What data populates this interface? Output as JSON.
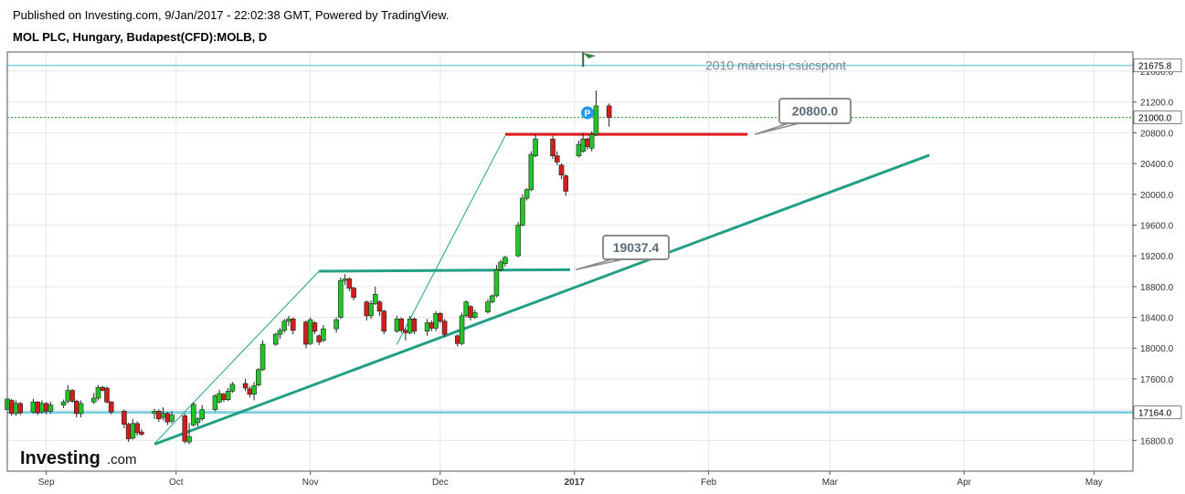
{
  "header": {
    "published": "Published on Investing.com, 9/Jan/2017 - 22:02:38 GMT, Powered by TradingView.",
    "symbol": "MOL PLC, Hungary, Budapest(CFD):MOLB, D"
  },
  "logo": {
    "main": "Investing",
    "suffix": ".com"
  },
  "colors": {
    "up": "#22c42a",
    "down": "#d11d1d",
    "trend": "#22a085",
    "red_level": "#e01b1b",
    "cyan_level": "#7fd3e0",
    "current": "#1a9a1a",
    "callout_border": "#8a8a8a",
    "callout_text": "#5a6b7a"
  },
  "chart_data": {
    "type": "candlestick",
    "title": "MOL PLC, Hungary, Budapest(CFD):MOLB, D",
    "ylim": [
      16400,
      21850
    ],
    "yticks": [
      16800,
      17200,
      17600,
      18000,
      18400,
      18800,
      19200,
      19600,
      20000,
      20400,
      20800,
      21200,
      21600
    ],
    "xlim": [
      "2016-08-23",
      "2017-05-10"
    ],
    "xticks": [
      {
        "date": "2016-09-01",
        "label": "Sep",
        "bold": false
      },
      {
        "date": "2016-10-01",
        "label": "Oct",
        "bold": false
      },
      {
        "date": "2016-11-01",
        "label": "Nov",
        "bold": false
      },
      {
        "date": "2016-12-01",
        "label": "Dec",
        "bold": false
      },
      {
        "date": "2017-01-01",
        "label": "2017",
        "bold": true
      },
      {
        "date": "2017-02-01",
        "label": "Feb",
        "bold": false
      },
      {
        "date": "2017-03-01",
        "label": "Mar",
        "bold": false
      },
      {
        "date": "2017-04-01",
        "label": "Apr",
        "bold": false
      },
      {
        "date": "2017-05-01",
        "label": "May",
        "bold": false
      }
    ],
    "grid": true,
    "current_price": 21000.0,
    "current_price_label": "21000.0",
    "price_tags": [
      {
        "value": 21675.8,
        "label": "21675.8"
      },
      {
        "value": 17164.0,
        "label": "17164.0"
      }
    ],
    "annotation_text": "2010 márciusi csúcspont",
    "callouts": [
      {
        "label": "20800.0",
        "value": 20800.0
      },
      {
        "label": "19037.4",
        "value": 19037.4
      }
    ],
    "lines": [
      {
        "kind": "resistance",
        "from": [
          "2016-12-16",
          20780
        ],
        "to": [
          "2017-02-10",
          20780
        ]
      },
      {
        "kind": "trend",
        "from": [
          "2016-09-26",
          16750
        ],
        "to": [
          "2017-03-24",
          20510
        ]
      },
      {
        "kind": "horizontal",
        "from": [
          "2016-11-03",
          19000
        ],
        "to": [
          "2016-12-31",
          19020
        ]
      },
      {
        "kind": "channel",
        "from": [
          "2016-09-26",
          16760
        ],
        "to": [
          "2016-11-03",
          19000
        ]
      },
      {
        "kind": "channel",
        "from": [
          "2016-11-21",
          18050
        ],
        "to": [
          "2016-12-16",
          20760
        ]
      }
    ],
    "pin_label": "P",
    "candles": [
      {
        "date": "2016-08-23",
        "o": 17200,
        "h": 17360,
        "l": 17120,
        "c": 17340
      },
      {
        "date": "2016-08-24",
        "o": 17320,
        "h": 17340,
        "l": 17120,
        "c": 17150
      },
      {
        "date": "2016-08-25",
        "o": 17150,
        "h": 17320,
        "l": 17120,
        "c": 17280
      },
      {
        "date": "2016-08-26",
        "o": 17280,
        "h": 17300,
        "l": 17130,
        "c": 17160
      },
      {
        "date": "2016-08-29",
        "o": 17170,
        "h": 17340,
        "l": 17150,
        "c": 17300
      },
      {
        "date": "2016-08-30",
        "o": 17300,
        "h": 17310,
        "l": 17130,
        "c": 17160
      },
      {
        "date": "2016-08-31",
        "o": 17170,
        "h": 17320,
        "l": 17150,
        "c": 17280
      },
      {
        "date": "2016-09-01",
        "o": 17280,
        "h": 17300,
        "l": 17140,
        "c": 17180
      },
      {
        "date": "2016-09-02",
        "o": 17180,
        "h": 17300,
        "l": 17150,
        "c": 17260
      },
      {
        "date": "2016-09-05",
        "o": 17260,
        "h": 17330,
        "l": 17220,
        "c": 17300
      },
      {
        "date": "2016-09-06",
        "o": 17310,
        "h": 17520,
        "l": 17280,
        "c": 17450
      },
      {
        "date": "2016-09-07",
        "o": 17450,
        "h": 17470,
        "l": 17290,
        "c": 17310
      },
      {
        "date": "2016-09-08",
        "o": 17310,
        "h": 17330,
        "l": 17100,
        "c": 17150
      },
      {
        "date": "2016-09-09",
        "o": 17150,
        "h": 17320,
        "l": 17100,
        "c": 17280
      },
      {
        "date": "2016-09-12",
        "o": 17300,
        "h": 17420,
        "l": 17270,
        "c": 17350
      },
      {
        "date": "2016-09-13",
        "o": 17350,
        "h": 17520,
        "l": 17320,
        "c": 17490
      },
      {
        "date": "2016-09-14",
        "o": 17490,
        "h": 17510,
        "l": 17440,
        "c": 17450
      },
      {
        "date": "2016-09-15",
        "o": 17480,
        "h": 17500,
        "l": 17280,
        "c": 17300
      },
      {
        "date": "2016-09-16",
        "o": 17300,
        "h": 17310,
        "l": 17140,
        "c": 17170
      },
      {
        "date": "2016-09-19",
        "o": 17180,
        "h": 17200,
        "l": 16960,
        "c": 17010
      },
      {
        "date": "2016-09-20",
        "o": 17010,
        "h": 17030,
        "l": 16780,
        "c": 16820
      },
      {
        "date": "2016-09-21",
        "o": 16830,
        "h": 17080,
        "l": 16810,
        "c": 17020
      },
      {
        "date": "2016-09-22",
        "o": 17020,
        "h": 17050,
        "l": 16860,
        "c": 16900
      },
      {
        "date": "2016-09-23",
        "o": 16910,
        "h": 16950,
        "l": 16860,
        "c": 16880
      },
      {
        "date": "2016-09-26",
        "o": 17150,
        "h": 17210,
        "l": 17080,
        "c": 17180
      },
      {
        "date": "2016-09-27",
        "o": 17180,
        "h": 17200,
        "l": 17040,
        "c": 17080
      },
      {
        "date": "2016-09-28",
        "o": 17100,
        "h": 17230,
        "l": 17060,
        "c": 17150
      },
      {
        "date": "2016-09-29",
        "o": 17150,
        "h": 17170,
        "l": 17000,
        "c": 17040
      },
      {
        "date": "2016-09-30",
        "o": 17050,
        "h": 17180,
        "l": 17020,
        "c": 17130
      },
      {
        "date": "2016-10-03",
        "o": 17120,
        "h": 17150,
        "l": 16760,
        "c": 16790
      },
      {
        "date": "2016-10-04",
        "o": 16780,
        "h": 17030,
        "l": 16750,
        "c": 16850
      },
      {
        "date": "2016-10-05",
        "o": 17000,
        "h": 17300,
        "l": 16980,
        "c": 17270
      },
      {
        "date": "2016-10-06",
        "o": 17030,
        "h": 17100,
        "l": 16980,
        "c": 17080
      },
      {
        "date": "2016-10-07",
        "o": 17080,
        "h": 17260,
        "l": 17050,
        "c": 17200
      },
      {
        "date": "2016-10-10",
        "o": 17200,
        "h": 17400,
        "l": 17180,
        "c": 17380
      },
      {
        "date": "2016-10-11",
        "o": 17300,
        "h": 17460,
        "l": 17280,
        "c": 17410
      },
      {
        "date": "2016-10-12",
        "o": 17400,
        "h": 17420,
        "l": 17300,
        "c": 17330
      },
      {
        "date": "2016-10-13",
        "o": 17330,
        "h": 17480,
        "l": 17310,
        "c": 17440
      },
      {
        "date": "2016-10-14",
        "o": 17440,
        "h": 17560,
        "l": 17420,
        "c": 17530
      },
      {
        "date": "2016-10-17",
        "o": 17540,
        "h": 17600,
        "l": 17440,
        "c": 17480
      },
      {
        "date": "2016-10-18",
        "o": 17470,
        "h": 17500,
        "l": 17360,
        "c": 17400
      },
      {
        "date": "2016-10-19",
        "o": 17400,
        "h": 17560,
        "l": 17320,
        "c": 17510
      },
      {
        "date": "2016-10-20",
        "o": 17520,
        "h": 17740,
        "l": 17500,
        "c": 17720
      },
      {
        "date": "2016-10-21",
        "o": 17720,
        "h": 18100,
        "l": 17700,
        "c": 18050
      },
      {
        "date": "2016-10-24",
        "o": 18050,
        "h": 18200,
        "l": 18030,
        "c": 18180
      },
      {
        "date": "2016-10-25",
        "o": 18180,
        "h": 18260,
        "l": 18120,
        "c": 18230
      },
      {
        "date": "2016-10-26",
        "o": 18230,
        "h": 18380,
        "l": 18200,
        "c": 18350
      },
      {
        "date": "2016-10-27",
        "o": 18350,
        "h": 18420,
        "l": 18290,
        "c": 18380
      },
      {
        "date": "2016-10-28",
        "o": 18380,
        "h": 18400,
        "l": 18180,
        "c": 18230
      },
      {
        "date": "2016-10-31",
        "o": 18340,
        "h": 18360,
        "l": 18000,
        "c": 18050
      },
      {
        "date": "2016-11-01",
        "o": 18060,
        "h": 18400,
        "l": 18040,
        "c": 18370
      },
      {
        "date": "2016-11-02",
        "o": 18330,
        "h": 18350,
        "l": 18180,
        "c": 18220
      },
      {
        "date": "2016-11-03",
        "o": 18160,
        "h": 18180,
        "l": 18040,
        "c": 18080
      },
      {
        "date": "2016-11-04",
        "o": 18100,
        "h": 18300,
        "l": 18080,
        "c": 18250
      },
      {
        "date": "2016-11-07",
        "o": 18250,
        "h": 18400,
        "l": 18200,
        "c": 18370
      },
      {
        "date": "2016-11-08",
        "o": 18400,
        "h": 18920,
        "l": 18380,
        "c": 18880
      },
      {
        "date": "2016-11-09",
        "o": 18880,
        "h": 18960,
        "l": 18820,
        "c": 18900
      },
      {
        "date": "2016-11-10",
        "o": 18900,
        "h": 18920,
        "l": 18740,
        "c": 18780
      },
      {
        "date": "2016-11-11",
        "o": 18780,
        "h": 18800,
        "l": 18620,
        "c": 18660
      },
      {
        "date": "2016-11-14",
        "o": 18600,
        "h": 18620,
        "l": 18360,
        "c": 18420
      },
      {
        "date": "2016-11-15",
        "o": 18420,
        "h": 18620,
        "l": 18380,
        "c": 18580
      },
      {
        "date": "2016-11-16",
        "o": 18580,
        "h": 18800,
        "l": 18560,
        "c": 18700
      },
      {
        "date": "2016-11-17",
        "o": 18600,
        "h": 18620,
        "l": 18420,
        "c": 18480
      },
      {
        "date": "2016-11-18",
        "o": 18480,
        "h": 18500,
        "l": 18180,
        "c": 18220
      },
      {
        "date": "2016-11-21",
        "o": 18220,
        "h": 18420,
        "l": 18200,
        "c": 18380
      },
      {
        "date": "2016-11-22",
        "o": 18380,
        "h": 18400,
        "l": 18200,
        "c": 18230
      },
      {
        "date": "2016-11-23",
        "o": 18230,
        "h": 18260,
        "l": 18100,
        "c": 18200
      },
      {
        "date": "2016-11-24",
        "o": 18200,
        "h": 18420,
        "l": 18180,
        "c": 18380
      },
      {
        "date": "2016-11-25",
        "o": 18380,
        "h": 18400,
        "l": 18180,
        "c": 18220
      },
      {
        "date": "2016-11-28",
        "o": 18220,
        "h": 18380,
        "l": 18160,
        "c": 18330
      },
      {
        "date": "2016-11-29",
        "o": 18330,
        "h": 18360,
        "l": 18220,
        "c": 18260
      },
      {
        "date": "2016-11-30",
        "o": 18260,
        "h": 18480,
        "l": 18220,
        "c": 18450
      },
      {
        "date": "2016-12-01",
        "o": 18450,
        "h": 18470,
        "l": 18320,
        "c": 18350
      },
      {
        "date": "2016-12-02",
        "o": 18350,
        "h": 18380,
        "l": 18140,
        "c": 18180
      },
      {
        "date": "2016-12-05",
        "o": 18160,
        "h": 18180,
        "l": 18020,
        "c": 18060
      },
      {
        "date": "2016-12-06",
        "o": 18060,
        "h": 18460,
        "l": 18040,
        "c": 18420
      },
      {
        "date": "2016-12-07",
        "o": 18420,
        "h": 18620,
        "l": 18400,
        "c": 18600
      },
      {
        "date": "2016-12-08",
        "o": 18540,
        "h": 18560,
        "l": 18360,
        "c": 18400
      },
      {
        "date": "2016-12-09",
        "o": 18400,
        "h": 18500,
        "l": 18380,
        "c": 18460
      },
      {
        "date": "2016-12-12",
        "o": 18470,
        "h": 18640,
        "l": 18450,
        "c": 18600
      },
      {
        "date": "2016-12-13",
        "o": 18600,
        "h": 18700,
        "l": 18580,
        "c": 18680
      },
      {
        "date": "2016-12-14",
        "o": 18680,
        "h": 19080,
        "l": 18660,
        "c": 19020
      },
      {
        "date": "2016-12-15",
        "o": 19020,
        "h": 19150,
        "l": 19000,
        "c": 19120
      },
      {
        "date": "2016-12-16",
        "o": 19100,
        "h": 19200,
        "l": 19060,
        "c": 19180
      },
      {
        "date": "2016-12-19",
        "o": 19200,
        "h": 19640,
        "l": 19180,
        "c": 19600
      },
      {
        "date": "2016-12-20",
        "o": 19600,
        "h": 20000,
        "l": 19580,
        "c": 19950
      },
      {
        "date": "2016-12-21",
        "o": 19950,
        "h": 20080,
        "l": 19920,
        "c": 20060
      },
      {
        "date": "2016-12-22",
        "o": 20060,
        "h": 20560,
        "l": 20040,
        "c": 20520
      },
      {
        "date": "2016-12-23",
        "o": 20500,
        "h": 20780,
        "l": 20480,
        "c": 20720
      },
      {
        "date": "2016-12-27",
        "o": 20720,
        "h": 20760,
        "l": 20460,
        "c": 20500
      },
      {
        "date": "2016-12-28",
        "o": 20500,
        "h": 20560,
        "l": 20380,
        "c": 20420
      },
      {
        "date": "2016-12-29",
        "o": 20380,
        "h": 20400,
        "l": 20200,
        "c": 20250
      },
      {
        "date": "2016-12-30",
        "o": 20240,
        "h": 20260,
        "l": 19980,
        "c": 20040
      },
      {
        "date": "2017-01-02",
        "o": 20500,
        "h": 20700,
        "l": 20480,
        "c": 20650
      },
      {
        "date": "2017-01-03",
        "o": 20560,
        "h": 20800,
        "l": 20540,
        "c": 20720
      },
      {
        "date": "2017-01-04",
        "o": 20720,
        "h": 20740,
        "l": 20580,
        "c": 20620
      },
      {
        "date": "2017-01-05",
        "o": 20600,
        "h": 20820,
        "l": 20560,
        "c": 20780
      },
      {
        "date": "2017-01-06",
        "o": 20780,
        "h": 21350,
        "l": 20760,
        "c": 21150
      },
      {
        "date": "2017-01-09",
        "o": 21150,
        "h": 21180,
        "l": 20880,
        "c": 21000
      }
    ]
  }
}
